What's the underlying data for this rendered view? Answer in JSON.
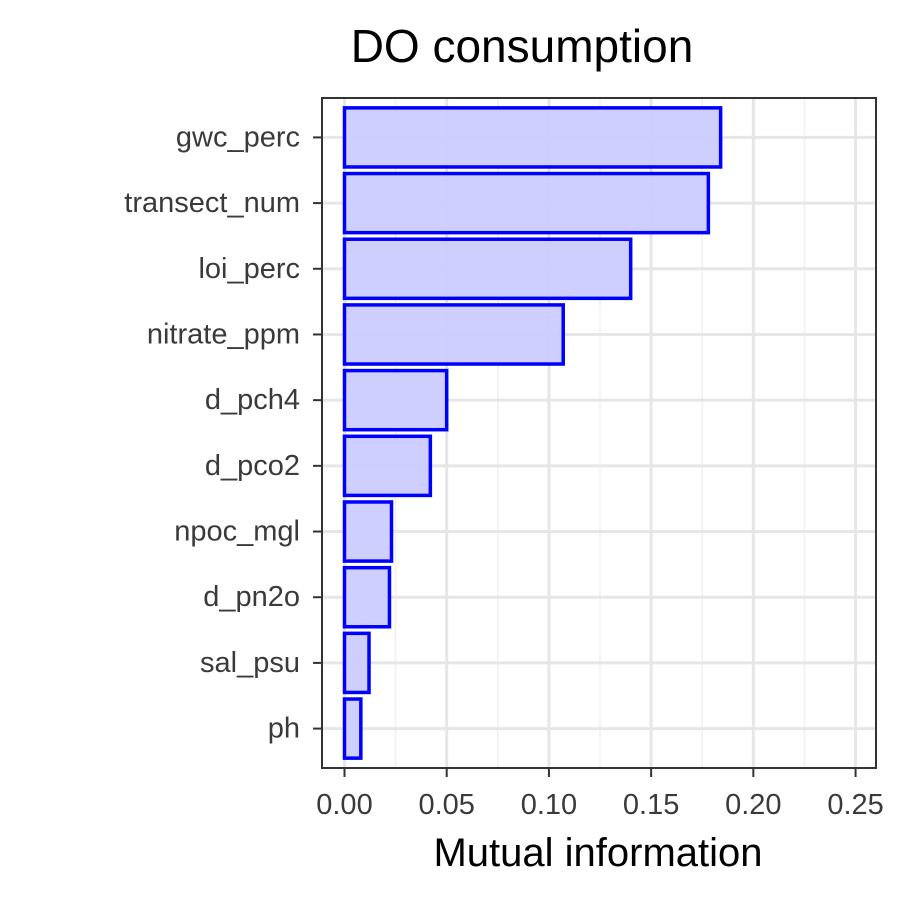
{
  "chart_data": {
    "type": "bar",
    "orientation": "horizontal",
    "title": "DO consumption",
    "xlabel": "Mutual information",
    "ylabel": "",
    "categories": [
      "gwc_perc",
      "transect_num",
      "loi_perc",
      "nitrate_ppm",
      "d_pch4",
      "d_pco2",
      "npoc_mgl",
      "d_pn2o",
      "sal_psu",
      "ph"
    ],
    "values": [
      0.184,
      0.178,
      0.14,
      0.107,
      0.05,
      0.042,
      0.023,
      0.022,
      0.012,
      0.008
    ],
    "xlim": [
      -0.011,
      0.26
    ],
    "xticks": [
      0,
      0.05,
      0.1,
      0.15,
      0.2,
      0.25
    ],
    "xtick_labels": [
      "0.00",
      "0.05",
      "0.10",
      "0.15",
      "0.20",
      "0.25"
    ],
    "grid": true,
    "legend": "none",
    "colors": {
      "bar_fill": "#ccccff",
      "bar_stroke": "#0000ff",
      "grid_major": "#e6e6e6",
      "grid_minor": "#f0f0f0",
      "panel_border": "#333333",
      "tick_label": "#3a3a3a"
    }
  }
}
